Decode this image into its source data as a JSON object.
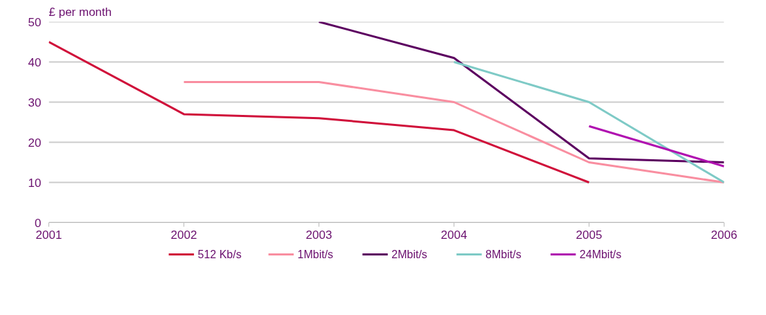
{
  "chart_data": {
    "type": "line",
    "ylabel": "£ per month",
    "x": [
      2001,
      2002,
      2003,
      2004,
      2005,
      2006
    ],
    "xlim": [
      2001,
      2006
    ],
    "xticks": [
      2001,
      2002,
      2003,
      2004,
      2005,
      2006
    ],
    "ylim": [
      0,
      50
    ],
    "yticks": [
      0,
      10,
      20,
      30,
      40,
      50
    ],
    "grid": "y",
    "legend": "bottom",
    "marker": "none",
    "line_style": "solid",
    "series": [
      {
        "name": "512 Kb/s",
        "color": "#d0103a",
        "values": [
          45,
          27,
          26,
          23,
          10,
          null
        ]
      },
      {
        "name": "1Mbit/s",
        "color": "#f98ea0",
        "values": [
          null,
          35,
          35,
          30,
          15,
          10
        ]
      },
      {
        "name": "2Mbit/s",
        "color": "#5c0060",
        "values": [
          null,
          null,
          50,
          41,
          16,
          15
        ]
      },
      {
        "name": "8Mbit/s",
        "color": "#7ecac6",
        "values": [
          null,
          null,
          null,
          40,
          30,
          10
        ]
      },
      {
        "name": "24Mbit/s",
        "color": "#b010b0",
        "values": [
          null,
          null,
          null,
          null,
          24,
          14
        ]
      }
    ]
  }
}
